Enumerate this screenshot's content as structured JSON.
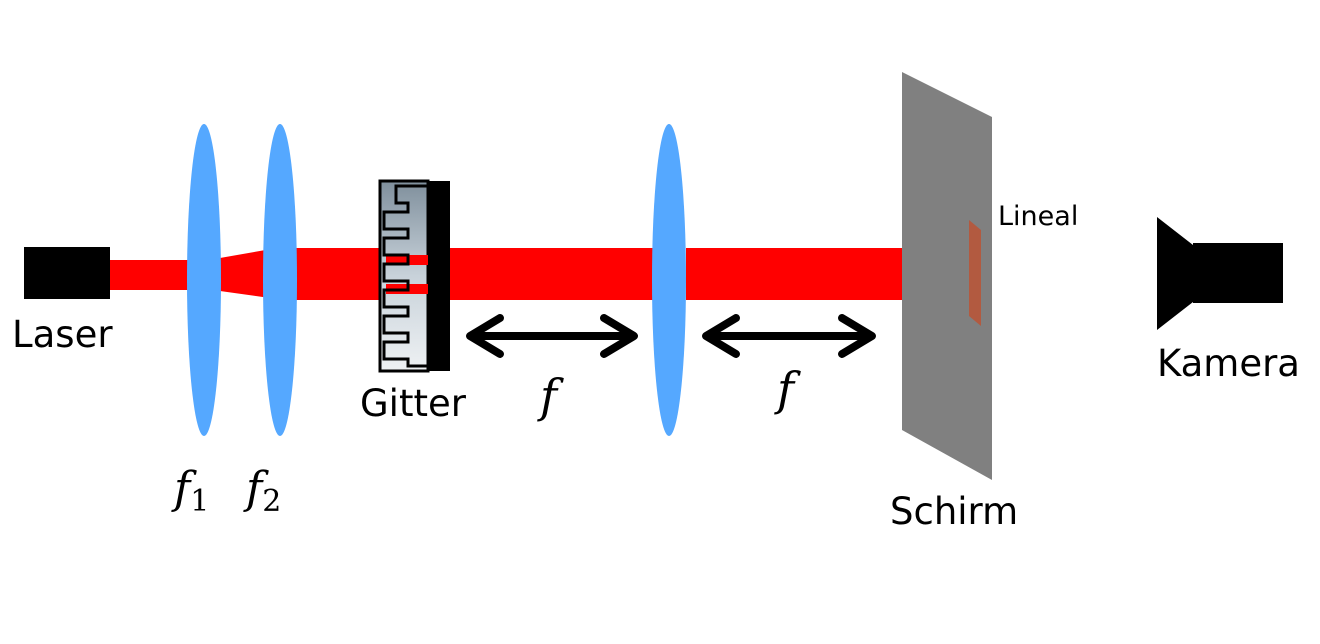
{
  "colors": {
    "beam": "#ff0000",
    "lens": "#55a8ff",
    "screen": "#808080",
    "ruler": "#b25a40",
    "device": "#000000"
  },
  "labels": {
    "laser": "Laser",
    "f1": {
      "base": "f",
      "sub": "1"
    },
    "f2": {
      "base": "f",
      "sub": "2"
    },
    "grating": "Gitter",
    "focal_left": "f",
    "focal_right": "f",
    "ruler": "Lineal",
    "screen": "Schirm",
    "camera": "Kamera"
  },
  "icons": {
    "laser": "laser-source-icon",
    "lens": "convex-lens-icon",
    "grating": "diffraction-grating-icon",
    "arrow": "double-arrow-icon",
    "screen": "screen-icon",
    "camera": "camera-icon"
  }
}
